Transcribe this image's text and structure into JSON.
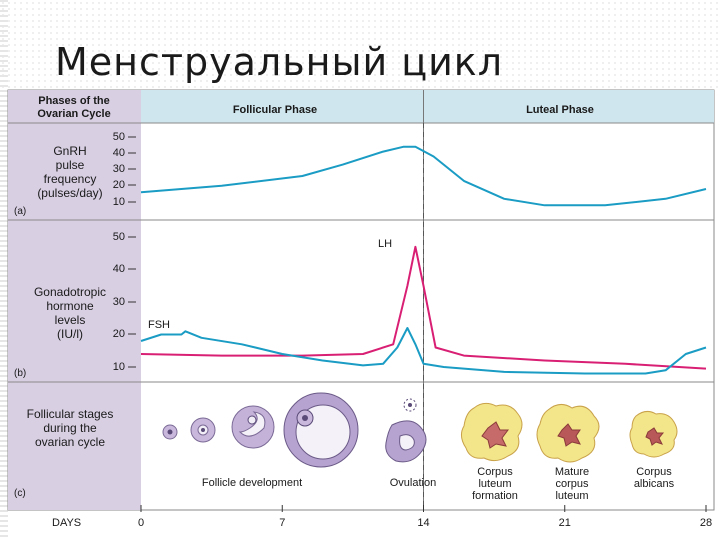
{
  "title": "Менструальный цикл",
  "header": {
    "left": [
      "Phases of the",
      "Ovarian Cycle"
    ],
    "follicular": "Follicular Phase",
    "luteal": "Luteal Phase"
  },
  "panel_a": {
    "label": [
      "GnRH",
      "pulse",
      "frequency",
      "(pulses/day)"
    ],
    "tag": "(a)",
    "ticks": [
      "50",
      "40",
      "30",
      "20",
      "10"
    ],
    "line_color": "#1a9cc4",
    "curve": [
      [
        0,
        16
      ],
      [
        4,
        20
      ],
      [
        8,
        26
      ],
      [
        10,
        33
      ],
      [
        12,
        41
      ],
      [
        13,
        44
      ],
      [
        13.6,
        44
      ],
      [
        14.5,
        38
      ],
      [
        16,
        23
      ],
      [
        18,
        12
      ],
      [
        20,
        8
      ],
      [
        23,
        8
      ],
      [
        26,
        12
      ],
      [
        28,
        18
      ]
    ]
  },
  "panel_b": {
    "label": [
      "Gonadotropic",
      "hormone",
      "levels",
      "(IU/l)"
    ],
    "tag": "(b)",
    "ticks": [
      "50",
      "40",
      "30",
      "20",
      "10"
    ],
    "series": [
      {
        "name": "LH",
        "color": "#d81f74",
        "points": [
          [
            0,
            14
          ],
          [
            4,
            13.5
          ],
          [
            8,
            13.5
          ],
          [
            11,
            14
          ],
          [
            12.5,
            17
          ],
          [
            13.2,
            35
          ],
          [
            13.6,
            47
          ],
          [
            14,
            35
          ],
          [
            14.6,
            16
          ],
          [
            16,
            13.5
          ],
          [
            20,
            12
          ],
          [
            24,
            11
          ],
          [
            28,
            9.5
          ]
        ]
      },
      {
        "name": "FSH",
        "color": "#1a9cc4",
        "points": [
          [
            0,
            18
          ],
          [
            1,
            20
          ],
          [
            2,
            20
          ],
          [
            2.2,
            21
          ],
          [
            3,
            19
          ],
          [
            5,
            17
          ],
          [
            7,
            14
          ],
          [
            9,
            12
          ],
          [
            11,
            10.5
          ],
          [
            12,
            11
          ],
          [
            12.7,
            16
          ],
          [
            13.2,
            22
          ],
          [
            13.6,
            17
          ],
          [
            14,
            11
          ],
          [
            15,
            10
          ],
          [
            18,
            8.5
          ],
          [
            22,
            8
          ],
          [
            25,
            8
          ],
          [
            26,
            9
          ],
          [
            27,
            14
          ],
          [
            28,
            16
          ]
        ]
      }
    ]
  },
  "panel_c": {
    "label": [
      "Follicular stages",
      "during the",
      "ovarian cycle"
    ],
    "tag": "(c)",
    "stages": [
      {
        "name": [
          "Follicle development"
        ]
      },
      {
        "name": [
          "Ovulation"
        ]
      },
      {
        "name": [
          "Corpus",
          "luteum",
          "formation"
        ]
      },
      {
        "name": [
          "Mature",
          "corpus",
          "luteum"
        ]
      },
      {
        "name": [
          "Corpus",
          "albicans"
        ]
      }
    ]
  },
  "days": {
    "label": "DAYS",
    "ticks": [
      "0",
      "7",
      "14",
      "21",
      "28"
    ],
    "values": [
      0,
      7,
      14,
      21,
      28
    ]
  },
  "colors": {
    "purple_panel": "#d8cfe3",
    "header_bg": "#cfe6ee",
    "luteal_yellow": "#f3e58a",
    "follicle_purple": "#b7a3cf"
  }
}
